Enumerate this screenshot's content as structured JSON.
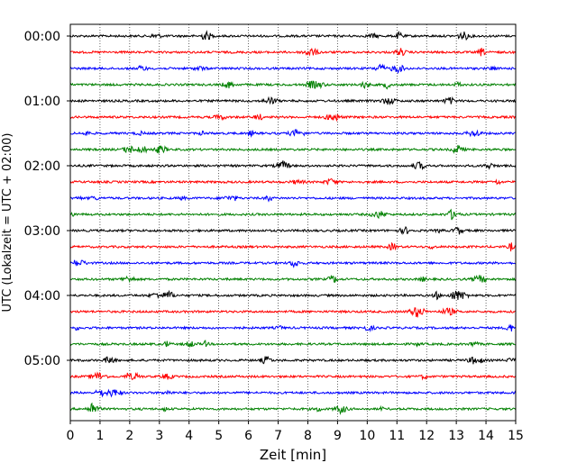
{
  "chart_data": {
    "type": "line",
    "chart_kind": "helicorder",
    "title": "",
    "xlabel": "Zeit  [min]",
    "ylabel": "UTC (Lokalzeit = UTC + 02:00)",
    "xlim": [
      0,
      15
    ],
    "x_ticks": [
      "0",
      "1",
      "2",
      "3",
      "4",
      "5",
      "6",
      "7",
      "8",
      "9",
      "10",
      "11",
      "12",
      "13",
      "14",
      "15"
    ],
    "y_ticks": [
      "00:00",
      "01:00",
      "02:00",
      "03:00",
      "04:00",
      "05:00"
    ],
    "row_interval_minutes": 15,
    "row_count": 24,
    "row_colors": [
      "#000000",
      "#ff0000",
      "#0000ff",
      "#008000"
    ],
    "grid": {
      "x": true,
      "y": false,
      "style": "dotted"
    },
    "legend": false
  }
}
